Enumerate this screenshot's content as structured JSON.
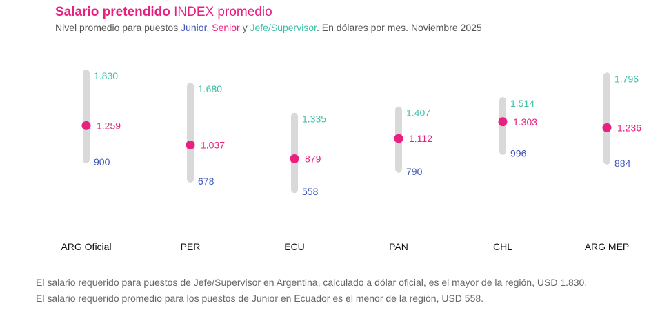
{
  "header": {
    "title_strong": "Salario pretendido",
    "title_rest": " INDEX promedio",
    "subtitle_prefix": "Nivel promedio para puestos ",
    "junior": "Junior",
    "comma": ", ",
    "senior": "Senior",
    "y": " y ",
    "jefe": "Jefe/Supervisor",
    "subtitle_suffix": ". En dólares por mes. Noviembre 2025"
  },
  "colors": {
    "junior": "#3d55b8",
    "senior": "#e8207f",
    "jefe": "#3dbfa5",
    "bar": "#d9d9d9"
  },
  "chart_data": {
    "type": "range",
    "title": "Salario pretendido INDEX promedio",
    "subtitle": "Nivel promedio para puestos Junior, Senior y Jefe/Supervisor. En dólares por mes. Noviembre 2025",
    "categories": [
      "ARG Oficial",
      "PER",
      "ECU",
      "PAN",
      "CHL",
      "ARG MEP"
    ],
    "series": [
      {
        "name": "Jefe/Supervisor",
        "values": [
          1830,
          1680,
          1335,
          1407,
          1514,
          1796
        ],
        "labels": [
          "1.830",
          "1.680",
          "1.335",
          "1.407",
          "1.514",
          "1.796"
        ]
      },
      {
        "name": "Senior",
        "values": [
          1259,
          1037,
          879,
          1112,
          1303,
          1236
        ],
        "labels": [
          "1.259",
          "1.037",
          "879",
          "1.112",
          "1.303",
          "1.236"
        ]
      },
      {
        "name": "Junior",
        "values": [
          900,
          678,
          558,
          790,
          996,
          884
        ],
        "labels": [
          "900",
          "678",
          "558",
          "790",
          "996",
          "884"
        ]
      }
    ],
    "ylim": [
      558,
      1830
    ],
    "xlabel": "",
    "ylabel": ""
  },
  "notes": [
    "El salario requerido para puestos de Jefe/Supervisor en Argentina, calculado a dólar oficial, es el mayor de la región, USD 1.830.",
    "El salario requerido promedio para los puestos de Junior en Ecuador es el menor de la región, USD 558."
  ]
}
